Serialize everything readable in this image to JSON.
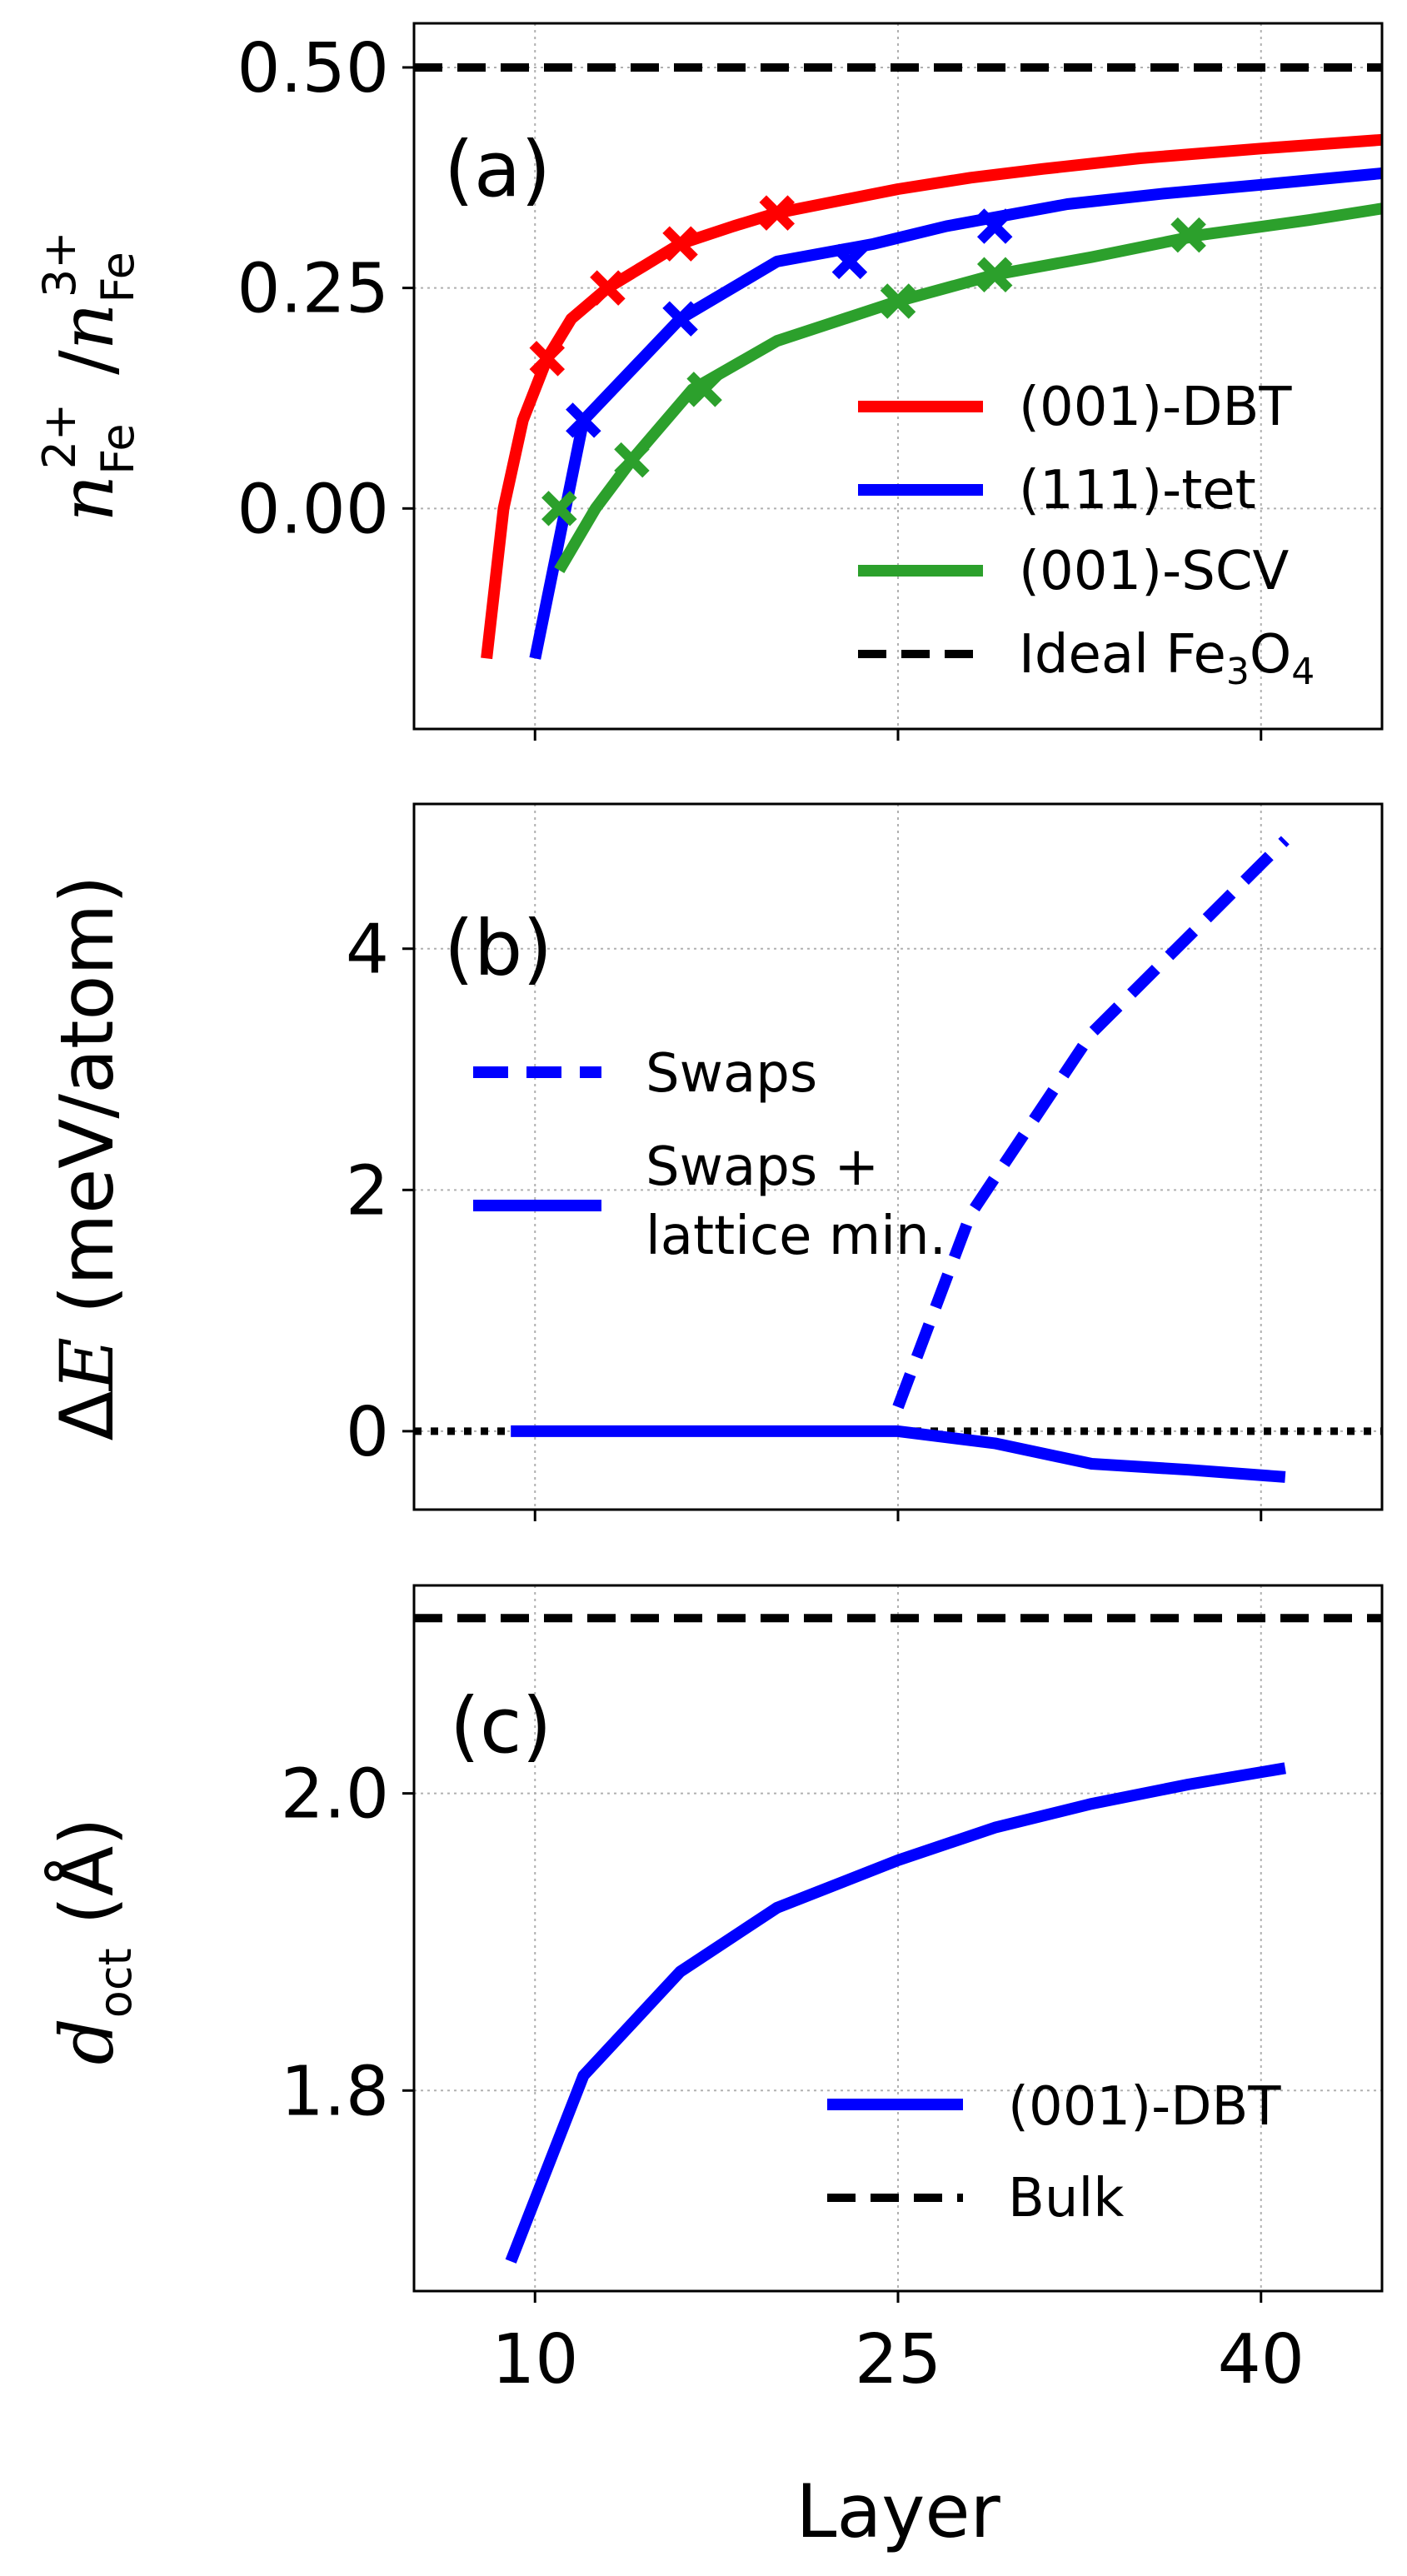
{
  "figure": {
    "xlabel": "Layer",
    "x_ticks": [
      10,
      25,
      40
    ]
  },
  "chart_data": [
    {
      "type": "line",
      "panel_label": "(a)",
      "ylabel": "n_Fe^2+ / n_Fe^3+",
      "ylabel_parts": {
        "n": "n",
        "fe": "Fe",
        "sup1": "2+",
        "sup2": "3+"
      },
      "xlim": [
        5,
        45
      ],
      "ylim": [
        -0.25,
        0.55
      ],
      "y_ticks": [
        "0.00",
        "0.25",
        "0.50"
      ],
      "y_tick_values": [
        0.0,
        0.25,
        0.5
      ],
      "grid": true,
      "legend_placement": "lower-right",
      "series": [
        {
          "name": "(001)-DBT",
          "color": "#ff0000",
          "style": "solid",
          "x": [
            8,
            8.7,
            9.5,
            10.5,
            11.5,
            13,
            14.5,
            16,
            18.2,
            20,
            25,
            28,
            31,
            35,
            40,
            45
          ],
          "y": [
            -0.17,
            0.0,
            0.1,
            0.17,
            0.215,
            0.25,
            0.275,
            0.3,
            0.32,
            0.335,
            0.362,
            0.375,
            0.385,
            0.397,
            0.408,
            0.418
          ],
          "marker_x": [
            10.5,
            13,
            16,
            20
          ],
          "marker_y": [
            0.17,
            0.25,
            0.3,
            0.335
          ]
        },
        {
          "name": "(111)-tet",
          "color": "#0000ff",
          "style": "solid",
          "x": [
            10,
            12,
            16,
            20,
            24,
            27,
            32,
            36,
            40,
            45
          ],
          "y": [
            -0.17,
            0.1,
            0.215,
            0.28,
            0.3,
            0.32,
            0.345,
            0.357,
            0.367,
            0.38
          ],
          "marker_x": [
            12,
            16,
            23,
            29
          ],
          "marker_y": [
            0.1,
            0.215,
            0.28,
            0.32
          ]
        },
        {
          "name": "(001)-SCV",
          "color": "#2ca02c",
          "style": "solid",
          "x": [
            11,
            12.5,
            14,
            16.5,
            20,
            25,
            29,
            33,
            37.5,
            42,
            45
          ],
          "y": [
            -0.07,
            0.0,
            0.055,
            0.135,
            0.19,
            0.235,
            0.265,
            0.285,
            0.31,
            0.327,
            0.34
          ],
          "marker_x": [
            11,
            14,
            17,
            25,
            29,
            37
          ],
          "marker_y": [
            0.0,
            0.055,
            0.135,
            0.235,
            0.265,
            0.31
          ]
        },
        {
          "name": "Ideal Fe3O4",
          "label_main": "Ideal Fe",
          "label_sub1": "3",
          "label_mid": "O",
          "label_sub2": "4",
          "color": "#000000",
          "style": "dashed",
          "y_const": 0.5
        }
      ]
    },
    {
      "type": "line",
      "panel_label": "(b)",
      "ylabel": "ΔE (meV/atom)",
      "ylabel_parts": {
        "delta": "Δ",
        "e": "E",
        "rest": " (meV/atom)"
      },
      "xlim": [
        5,
        45
      ],
      "ylim": [
        -0.65,
        5.2
      ],
      "y_ticks": [
        "0",
        "2",
        "4"
      ],
      "y_tick_values": [
        0,
        2,
        4
      ],
      "grid": true,
      "legend_placement": "upper-left",
      "series": [
        {
          "name": "Swaps",
          "color": "#0000ff",
          "style": "dashed",
          "x": [
            25,
            28,
            33,
            37,
            41
          ],
          "y": [
            0.2,
            1.8,
            3.3,
            4.1,
            4.9
          ]
        },
        {
          "name": "Swaps + lattice min.",
          "label_line1": "Swaps +",
          "label_line2": "lattice min.",
          "color": "#0000ff",
          "style": "solid",
          "x": [
            9,
            15,
            20,
            25,
            29,
            33,
            37,
            41
          ],
          "y": [
            0.0,
            0.0,
            0.0,
            0.0,
            -0.1,
            -0.27,
            -0.32,
            -0.38
          ]
        }
      ],
      "reference_line": {
        "y": 0,
        "style": "dotted",
        "color": "#000000"
      }
    },
    {
      "type": "line",
      "panel_label": "(c)",
      "ylabel": "d_oct (Å)",
      "ylabel_parts": {
        "d": "d",
        "sub": "oct",
        "rest": " (Å)"
      },
      "xlim": [
        5,
        45
      ],
      "ylim": [
        1.665,
        2.14
      ],
      "y_ticks": [
        "1.8",
        "2.0"
      ],
      "y_tick_values": [
        1.8,
        2.0
      ],
      "grid": true,
      "legend_placement": "lower-right",
      "series": [
        {
          "name": "(001)-DBT",
          "color": "#0000ff",
          "style": "solid",
          "x": [
            9,
            12,
            16,
            20,
            25,
            29,
            33,
            37,
            41
          ],
          "y": [
            1.685,
            1.81,
            1.88,
            1.923,
            1.955,
            1.977,
            1.993,
            2.006,
            2.017
          ]
        },
        {
          "name": "Bulk",
          "color": "#000000",
          "style": "dashed",
          "y_const": 2.118
        }
      ]
    }
  ]
}
